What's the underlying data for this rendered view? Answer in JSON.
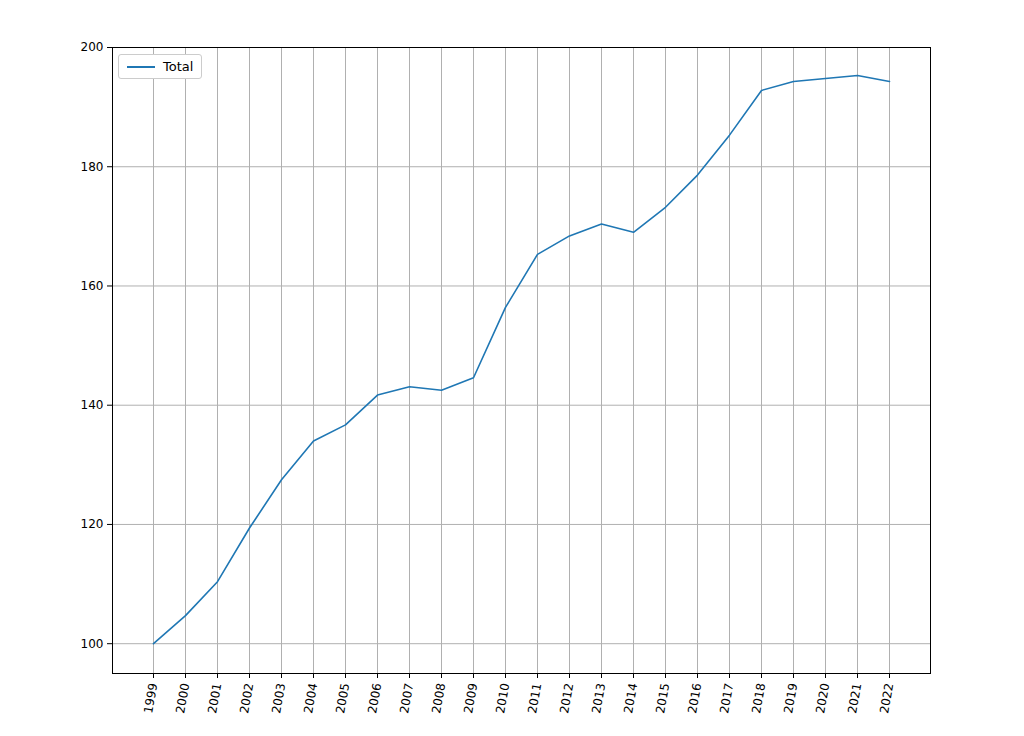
{
  "chart_data": {
    "type": "line",
    "categories": [
      "1999",
      "2000",
      "2001",
      "2002",
      "2003",
      "2004",
      "2005",
      "2006",
      "2007",
      "2008",
      "2009",
      "2010",
      "2011",
      "2012",
      "2013",
      "2014",
      "2015",
      "2016",
      "2017",
      "2018",
      "2019",
      "2020",
      "2021",
      "2022"
    ],
    "series": [
      {
        "name": "Total",
        "color": "#1f77b4",
        "values": [
          100,
          104.7,
          110.4,
          119.4,
          127.5,
          134.0,
          136.7,
          141.7,
          143.1,
          142.5,
          144.6,
          156.4,
          165.3,
          168.4,
          170.4,
          169.0,
          173.2,
          178.6,
          185.3,
          192.8,
          194.3,
          194.8,
          195.3,
          194.3
        ]
      }
    ],
    "ylim": [
      95,
      200
    ],
    "yticks": [
      100,
      120,
      140,
      160,
      180,
      200
    ],
    "grid": true,
    "legend": "upper left"
  }
}
